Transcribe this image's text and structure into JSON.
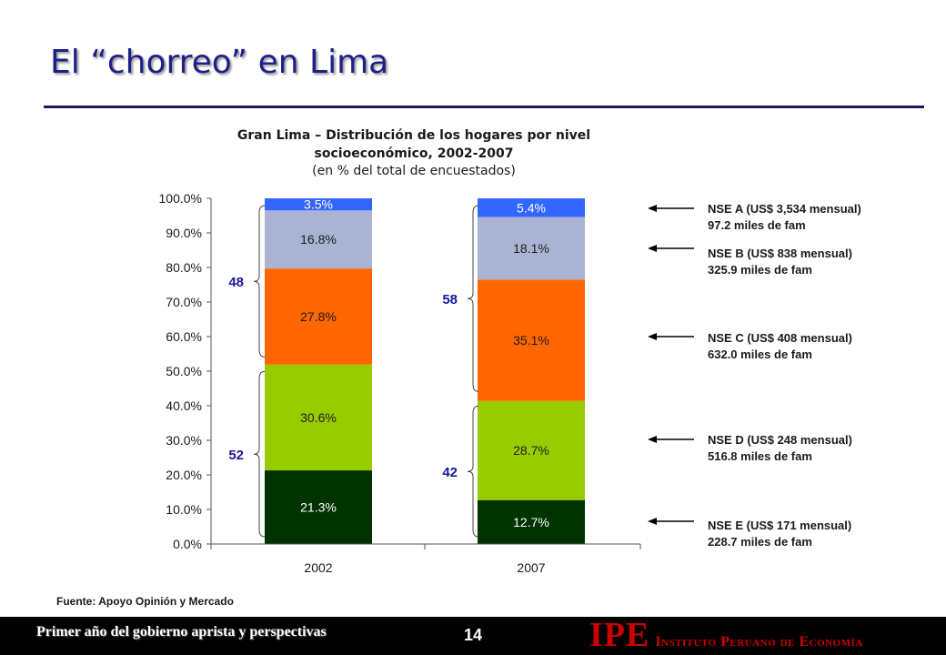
{
  "slide": {
    "title": "El “chorreo” en Lima",
    "chart_title": "Gran Lima – Distribución de los hogares por nivel socioeconómico, 2002-2007",
    "chart_subtitle": "(en % del total de encuestados)",
    "source": "Fuente: Apoyo Opinión y Mercado"
  },
  "legend": [
    {
      "line1": "NSE A (US$ 3,534 mensual)",
      "line2": "97.2 miles de fam"
    },
    {
      "line1": "NSE B (US$ 838 mensual)",
      "line2": "325.9 miles de fam"
    },
    {
      "line1": "NSE C (US$ 408 mensual)",
      "line2": "632.0 miles de fam"
    },
    {
      "line1": "NSE D (US$ 248 mensual)",
      "line2": "516.8 miles de fam"
    },
    {
      "line1": "NSE E (US$ 171 mensual)",
      "line2": "228.7 miles de fam"
    }
  ],
  "footer": {
    "text": "Primer año del gobierno aprista y perspectivas",
    "page_number": "14",
    "logo_mark": "IPE",
    "logo_name": "Instituto Peruano de Economía"
  },
  "colors": {
    "nse_e": "#003300",
    "nse_d": "#99cc00",
    "nse_c": "#ff6600",
    "nse_b": "#aab4d2",
    "nse_a": "#3366ff",
    "bracket_label": "#1a1a99"
  },
  "chart_data": {
    "type": "bar",
    "stacked": true,
    "categories": [
      "2002",
      "2007"
    ],
    "ylim": [
      0,
      100
    ],
    "y_ticks": [
      "0.0%",
      "10.0%",
      "20.0%",
      "30.0%",
      "40.0%",
      "50.0%",
      "60.0%",
      "70.0%",
      "80.0%",
      "90.0%",
      "100.0%"
    ],
    "series": [
      {
        "key": "nse_e",
        "values": [
          21.3,
          12.7
        ],
        "labels": [
          "21.3%",
          "12.7%"
        ],
        "label_color": "#ffffff"
      },
      {
        "key": "nse_d",
        "values": [
          30.6,
          28.7
        ],
        "labels": [
          "30.6%",
          "28.7%"
        ],
        "label_color": "#1a1a1a"
      },
      {
        "key": "nse_c",
        "values": [
          27.8,
          35.1
        ],
        "labels": [
          "27.8%",
          "35.1%"
        ],
        "label_color": "#1a1a1a"
      },
      {
        "key": "nse_b",
        "values": [
          16.8,
          18.1
        ],
        "labels": [
          "16.8%",
          "18.1%"
        ],
        "label_color": "#1a1a1a"
      },
      {
        "key": "nse_a",
        "values": [
          3.5,
          5.4
        ],
        "labels": [
          "3.5%",
          "5.4%"
        ],
        "label_color": "#ffffff"
      }
    ],
    "brackets": [
      {
        "bar": 0,
        "from": 0,
        "to": 52,
        "label": "52"
      },
      {
        "bar": 0,
        "from": 52,
        "to": 100,
        "label": "48"
      },
      {
        "bar": 1,
        "from": 0,
        "to": 42,
        "label": "42"
      },
      {
        "bar": 1,
        "from": 42,
        "to": 100,
        "label": "58"
      }
    ]
  }
}
